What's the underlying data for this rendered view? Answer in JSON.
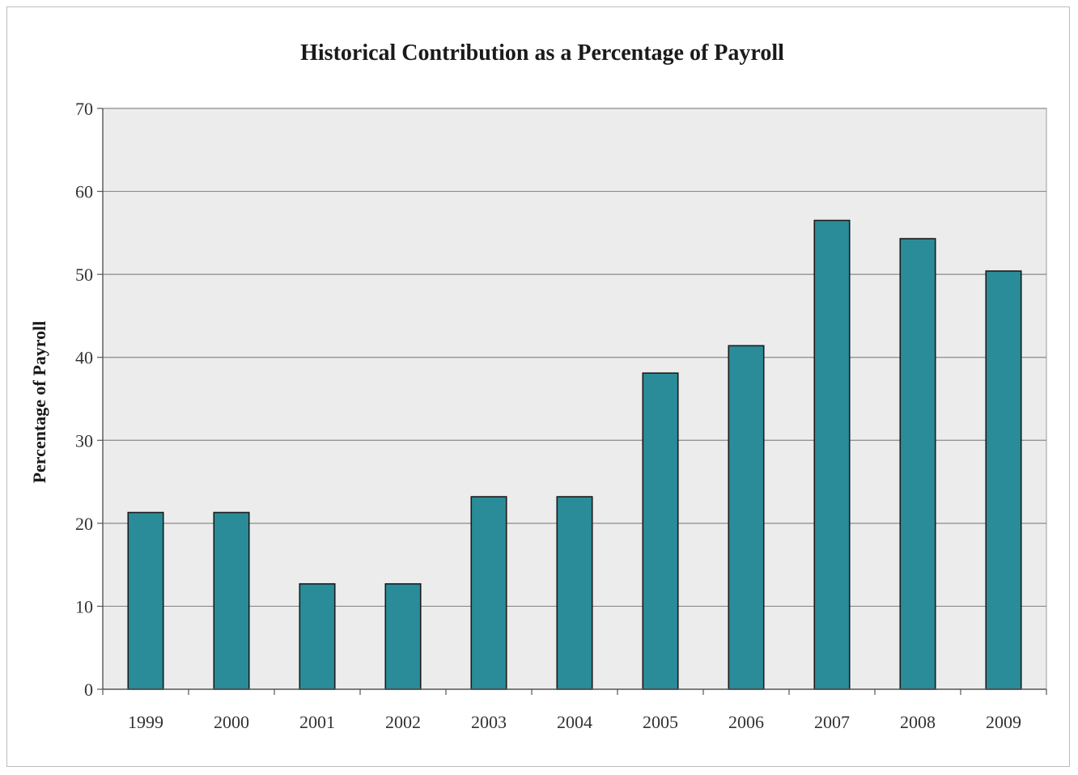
{
  "chart_data": {
    "type": "bar",
    "title": "Historical Contribution as a Percentage of Payroll",
    "xlabel": "",
    "ylabel": "Percentage of Payroll",
    "categories": [
      "1999",
      "2000",
      "2001",
      "2002",
      "2003",
      "2004",
      "2005",
      "2006",
      "2007",
      "2008",
      "2009"
    ],
    "values": [
      21.3,
      21.3,
      12.7,
      12.7,
      23.2,
      23.2,
      38.1,
      41.4,
      56.5,
      54.3,
      50.4
    ],
    "ylim": [
      0,
      70
    ],
    "yticks": [
      0,
      10,
      20,
      30,
      40,
      50,
      60,
      70
    ],
    "grid": true,
    "legend": "none",
    "colors": {
      "bar_fill": "#2a8c99",
      "bar_stroke": "#1b1b1b",
      "plot_background": "#ececec",
      "gridline": "#8a8a8a"
    }
  }
}
